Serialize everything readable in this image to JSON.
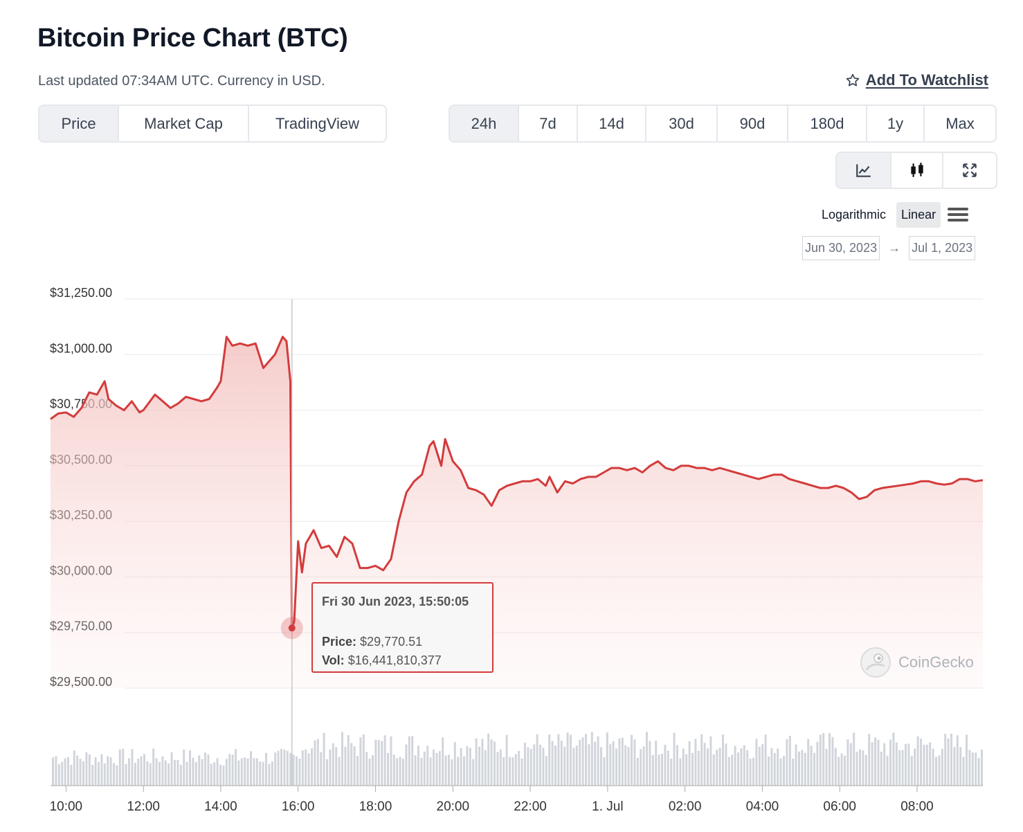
{
  "header": {
    "title": "Bitcoin Price Chart (BTC)",
    "subtitle": "Last updated 07:34AM UTC. Currency in USD.",
    "watchlist_label": "Add To Watchlist"
  },
  "tabs": [
    {
      "label": "Price",
      "active": true
    },
    {
      "label": "Market Cap",
      "active": false
    },
    {
      "label": "TradingView",
      "active": false
    }
  ],
  "ranges": [
    {
      "label": "24h",
      "active": true
    },
    {
      "label": "7d",
      "active": false
    },
    {
      "label": "14d",
      "active": false
    },
    {
      "label": "30d",
      "active": false
    },
    {
      "label": "90d",
      "active": false
    },
    {
      "label": "180d",
      "active": false
    },
    {
      "label": "1y",
      "active": false
    },
    {
      "label": "Max",
      "active": false
    }
  ],
  "chart_types": [
    {
      "icon": "line-chart-icon",
      "active": true
    },
    {
      "icon": "candlestick-icon",
      "active": false
    },
    {
      "icon": "expand-icon",
      "active": false
    }
  ],
  "scale": {
    "log_label": "Logarithmic",
    "linear_label": "Linear",
    "active": "linear"
  },
  "date_range": {
    "from": "Jun 30, 2023",
    "to": "Jul 1, 2023"
  },
  "tooltip": {
    "time": "Fri 30 Jun 2023, 15:50:05",
    "price_label": "Price:",
    "price_value": "$29,770.51",
    "vol_label": "Vol:",
    "vol_value": "$16,441,810,377"
  },
  "brand": "CoinGecko",
  "colors": {
    "line": "#d33b3b",
    "fill": "#f7d4d2",
    "volume": "#d1d5db",
    "grid": "#ececec",
    "crosshair": "#c8c8c8"
  },
  "chart_data": {
    "type": "area",
    "y_unit": "USD",
    "ylim": [
      29500,
      31250
    ],
    "y_ticks": [
      31250,
      31000,
      30750,
      30500,
      30250,
      30000,
      29750,
      29500
    ],
    "y_tick_labels": [
      "$31,250.00",
      "$31,000.00",
      "$30,750.00",
      "$30,500.00",
      "$30,250.00",
      "$30,000.00",
      "$29,750.00",
      "$29,500.00"
    ],
    "x_range_hours": [
      9.6,
      33.7
    ],
    "x_ticks": [
      10,
      12,
      14,
      16,
      18,
      20,
      22,
      24,
      26,
      28,
      30,
      32
    ],
    "x_tick_labels": [
      "10:00",
      "12:00",
      "14:00",
      "16:00",
      "18:00",
      "20:00",
      "22:00",
      "1. Jul",
      "02:00",
      "04:00",
      "06:00",
      "08:00"
    ],
    "grid": true,
    "series": [
      {
        "x": [
          9.6,
          9.8,
          10.0,
          10.2,
          10.4,
          10.6,
          10.8,
          11.0,
          11.1,
          11.3,
          11.5,
          11.7,
          11.9,
          12.0,
          12.3,
          12.5,
          12.7,
          12.9,
          13.1,
          13.3,
          13.5,
          13.7,
          13.9,
          14.0,
          14.15,
          14.3,
          14.5,
          14.7,
          14.9,
          15.1,
          15.2,
          15.4,
          15.6,
          15.7,
          15.8,
          15.84,
          15.9,
          16.0,
          16.1,
          16.2,
          16.4,
          16.6,
          16.8,
          17.0,
          17.2,
          17.4,
          17.6,
          17.8,
          18.0,
          18.2,
          18.4,
          18.6,
          18.8,
          19.0,
          19.2,
          19.4,
          19.5,
          19.7,
          19.8,
          20.0,
          20.2,
          20.4,
          20.6,
          20.8,
          21.0,
          21.2,
          21.4,
          21.6,
          21.8,
          22.0,
          22.2,
          22.4,
          22.5,
          22.7,
          22.9,
          23.1,
          23.3,
          23.5,
          23.7,
          23.9,
          24.1,
          24.3,
          24.5,
          24.7,
          24.9,
          25.1,
          25.3,
          25.5,
          25.7,
          25.9,
          26.1,
          26.3,
          26.5,
          26.7,
          26.9,
          27.1,
          27.3,
          27.5,
          27.7,
          27.9,
          28.1,
          28.3,
          28.5,
          28.7,
          28.9,
          29.1,
          29.3,
          29.5,
          29.7,
          29.9,
          30.1,
          30.3,
          30.5,
          30.7,
          30.9,
          31.1,
          31.3,
          31.5,
          31.7,
          31.9,
          32.1,
          32.3,
          32.5,
          32.7,
          32.9,
          33.1,
          33.3,
          33.5,
          33.7
        ],
        "y": [
          30710,
          30735,
          30740,
          30720,
          30760,
          30830,
          30820,
          30880,
          30800,
          30770,
          30750,
          30790,
          30740,
          30750,
          30820,
          30790,
          30760,
          30780,
          30810,
          30800,
          30790,
          30800,
          30850,
          30880,
          31080,
          31040,
          31050,
          31040,
          31050,
          30940,
          30960,
          31000,
          31080,
          31060,
          30880,
          29770,
          29800,
          30160,
          30020,
          30150,
          30210,
          30130,
          30140,
          30090,
          30180,
          30150,
          30040,
          30040,
          30050,
          30030,
          30080,
          30250,
          30380,
          30430,
          30460,
          30590,
          30610,
          30500,
          30620,
          30520,
          30480,
          30400,
          30390,
          30370,
          30320,
          30390,
          30410,
          30420,
          30430,
          30430,
          30440,
          30410,
          30450,
          30380,
          30430,
          30420,
          30440,
          30450,
          30450,
          30470,
          30490,
          30490,
          30480,
          30490,
          30470,
          30500,
          30520,
          30490,
          30480,
          30500,
          30500,
          30490,
          30490,
          30480,
          30490,
          30480,
          30470,
          30460,
          30450,
          30440,
          30450,
          30460,
          30460,
          30440,
          30430,
          30420,
          30410,
          30400,
          30400,
          30410,
          30400,
          30380,
          30350,
          30360,
          30390,
          30400,
          30405,
          30410,
          30415,
          30420,
          30430,
          30430,
          30420,
          30415,
          30420,
          30440,
          30440,
          30430,
          30435
        ]
      }
    ],
    "crosshair_x": 15.84,
    "volume": "unlabeled volume bars along bottom"
  }
}
